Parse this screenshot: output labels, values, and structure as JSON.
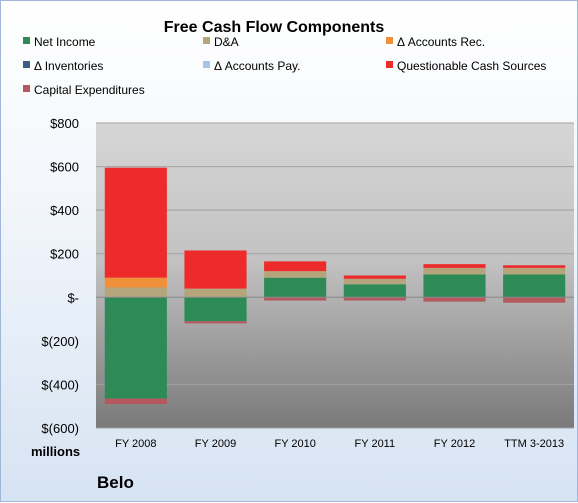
{
  "chart_data": {
    "type": "bar",
    "stacked": true,
    "title": "Free Cash Flow Components",
    "unit_label": "millions",
    "company": "Belo",
    "categories": [
      "FY 2008",
      "FY 2009",
      "FY 2010",
      "FY 2011",
      "FY 2012",
      "TTM 3-2013"
    ],
    "ylim": [
      -600,
      800
    ],
    "yticks": [
      {
        "value": 800,
        "label": "$800"
      },
      {
        "value": 600,
        "label": "$600"
      },
      {
        "value": 400,
        "label": "$400"
      },
      {
        "value": 200,
        "label": "$200"
      },
      {
        "value": 0,
        "label": "$-"
      },
      {
        "value": -200,
        "label": "$(200)"
      },
      {
        "value": -400,
        "label": "$(400)"
      },
      {
        "value": -600,
        "label": "$(600)"
      }
    ],
    "grid": true,
    "legend_position": "top",
    "series": [
      {
        "name": "Net Income",
        "color": "#2e8b57",
        "values": [
          -465,
          -110,
          90,
          60,
          105,
          105
        ]
      },
      {
        "name": "D&A",
        "color": "#b4a57c",
        "values": [
          45,
          40,
          30,
          25,
          30,
          30
        ]
      },
      {
        "name": "Δ Accounts Rec.",
        "color": "#f0913a",
        "values": [
          45,
          0,
          0,
          0,
          0,
          0
        ]
      },
      {
        "name": "Δ Inventories",
        "color": "#3c5a82",
        "values": [
          0,
          0,
          0,
          0,
          0,
          0
        ]
      },
      {
        "name": "Δ Accounts Pay.",
        "color": "#a8c3e8",
        "values": [
          0,
          0,
          0,
          0,
          0,
          0
        ]
      },
      {
        "name": "Questionable Cash Sources",
        "color": "#ee2b2b",
        "values": [
          505,
          175,
          45,
          15,
          17,
          12
        ]
      },
      {
        "name": "Capital Expenditures",
        "color": "#b45a5e",
        "values": [
          -25,
          -10,
          -15,
          -15,
          -20,
          -25
        ]
      }
    ]
  }
}
